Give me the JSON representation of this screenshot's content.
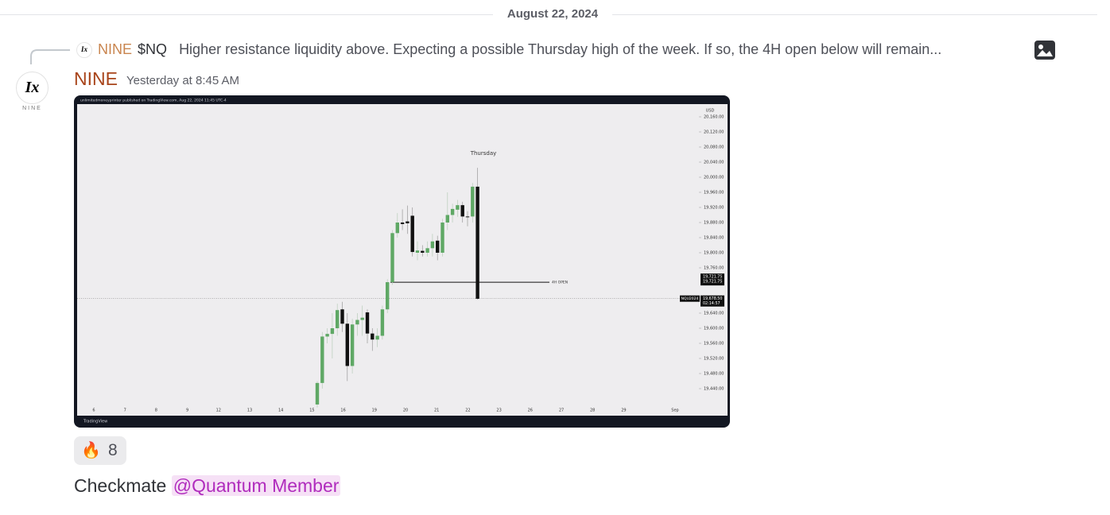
{
  "date_divider": "August 22, 2024",
  "reply": {
    "author": "NINE",
    "ticker": "$NQ",
    "text": "Higher resistance liquidity above. Expecting a possible Thursday high of the week. If so, the 4H open below will remain..."
  },
  "message": {
    "author": "NINE",
    "timestamp": "Yesterday at 8:45 AM",
    "avatar_caption": "NINE",
    "reactions": [
      {
        "emoji": "🔥",
        "count": 8
      }
    ],
    "text": "Checkmate",
    "mention": "@Quantum Member"
  },
  "chart_data": {
    "type": "candlestick",
    "header": "unlimitedmoneyprinter published on TradingView.com, Aug 22, 2024 11:45 UTC-4",
    "currency": "USD",
    "footer": "TradingView",
    "ylim": [
      19380,
      20180
    ],
    "yticks": [
      {
        "value": 20160,
        "label": "20,160.00"
      },
      {
        "value": 20120,
        "label": "20,120.00"
      },
      {
        "value": 20080,
        "label": "20,080.00"
      },
      {
        "value": 20040,
        "label": "20,040.00"
      },
      {
        "value": 20000,
        "label": "20,000.00"
      },
      {
        "value": 19960,
        "label": "19,960.00"
      },
      {
        "value": 19920,
        "label": "19,920.00"
      },
      {
        "value": 19880,
        "label": "19,880.00"
      },
      {
        "value": 19840,
        "label": "19,840.00"
      },
      {
        "value": 19800,
        "label": "19,800.00"
      },
      {
        "value": 19760,
        "label": "19,760.00"
      },
      {
        "value": 19640,
        "label": "19,640.00"
      },
      {
        "value": 19600,
        "label": "19,600.00"
      },
      {
        "value": 19560,
        "label": "19,560.00"
      },
      {
        "value": 19520,
        "label": "19,520.00"
      },
      {
        "value": 19480,
        "label": "19,480.00"
      },
      {
        "value": 19440,
        "label": "19,440.00"
      }
    ],
    "x_labels": [
      "6",
      "7",
      "8",
      "9",
      "12",
      "13",
      "14",
      "15",
      "16",
      "19",
      "20",
      "21",
      "22",
      "23",
      "26",
      "27",
      "28",
      "29",
      "Sep"
    ],
    "annotation": "Thursday",
    "open_line": {
      "value": 19721.75,
      "label": "19,721.75",
      "text": "4H OPEN"
    },
    "price_line": {
      "value": 19678.5,
      "label": "19,678.50",
      "symbol": "NQU2024",
      "countdown": "02:14:57"
    },
    "candles": {
      "open": [
        19398,
        19455,
        19578,
        19585,
        19600,
        19650,
        19612,
        19500,
        19610,
        19622,
        19642,
        19586,
        19570,
        19580,
        19650,
        19722,
        19852,
        19880,
        19883,
        19898,
        19800,
        19805,
        19800,
        19812,
        19832,
        19800,
        19880,
        19900,
        19914,
        19926,
        19896,
        19896,
        19975
      ],
      "high": [
        19460,
        19590,
        19600,
        19640,
        19665,
        19670,
        19640,
        19625,
        19640,
        19660,
        19650,
        19600,
        19600,
        19660,
        19730,
        19860,
        19905,
        19915,
        19925,
        19920,
        19830,
        19820,
        19830,
        19850,
        19845,
        19890,
        19960,
        19930,
        19940,
        19935,
        19910,
        19985,
        20025
      ],
      "low": [
        19390,
        19440,
        19560,
        19520,
        19580,
        19590,
        19460,
        19480,
        19580,
        19580,
        19560,
        19540,
        19550,
        19570,
        19640,
        19715,
        19840,
        19860,
        19850,
        19790,
        19780,
        19790,
        19790,
        19790,
        19780,
        19790,
        19860,
        19880,
        19895,
        19880,
        19870,
        19880,
        19676
      ],
      "close": [
        19455,
        19578,
        19585,
        19600,
        19648,
        19612,
        19500,
        19610,
        19622,
        19628,
        19586,
        19570,
        19580,
        19650,
        19722,
        19852,
        19880,
        19876,
        19878,
        19802,
        19806,
        19800,
        19812,
        19830,
        19800,
        19880,
        19900,
        19916,
        19926,
        19896,
        19894,
        19975,
        19678
      ]
    }
  }
}
